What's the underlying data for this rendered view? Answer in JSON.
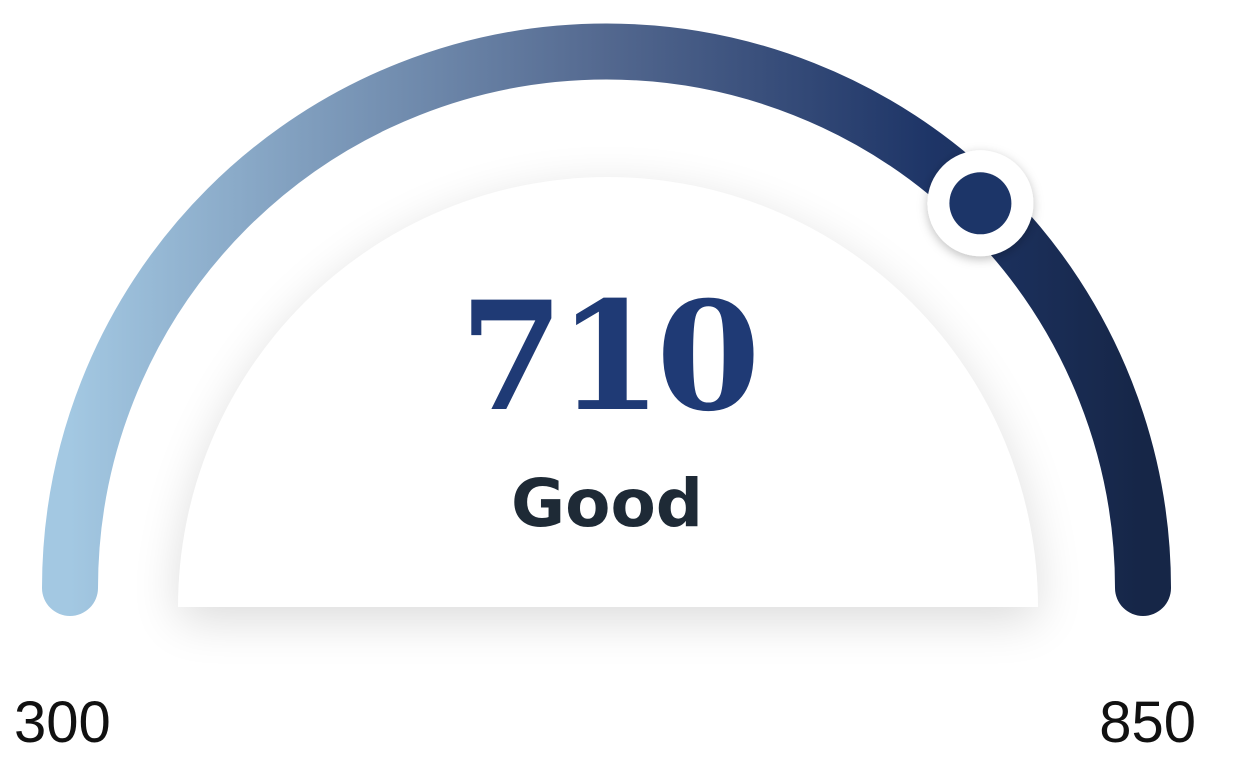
{
  "gauge": {
    "score": "710",
    "rating": "Good",
    "min_label": "300",
    "max_label": "850",
    "min_value": 300,
    "max_value": 850,
    "value": 710
  },
  "colors": {
    "score_text": "#1f3a75",
    "rating_text": "#1e2a36",
    "range_text": "#111111",
    "arc_start": "#a3c8e2",
    "arc_mid": "#53688f",
    "arc_high": "#1e3567",
    "arc_end": "#162647",
    "knob_dot": "#1e3567",
    "knob_ring": "#ffffff"
  }
}
